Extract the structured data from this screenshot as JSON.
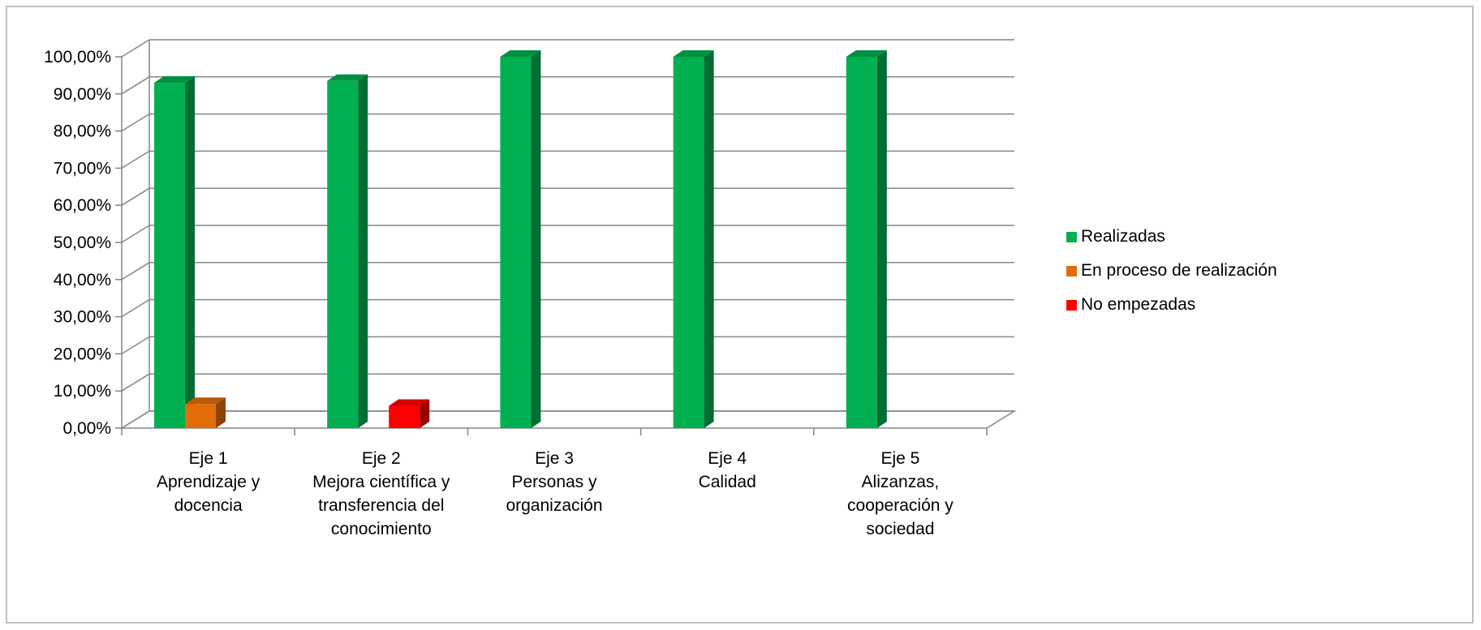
{
  "chart_data": {
    "type": "bar",
    "title": "",
    "xlabel": "",
    "ylabel": "",
    "ylim": [
      0,
      1
    ],
    "y_ticks": [
      "0,00%",
      "10,00%",
      "20,00%",
      "30,00%",
      "40,00%",
      "50,00%",
      "60,00%",
      "70,00%",
      "80,00%",
      "90,00%",
      "100,00%"
    ],
    "grid": true,
    "style": "3d-clustered-column",
    "legend_position": "right",
    "categories": [
      [
        "Eje 1",
        "Aprendizaje y",
        "docencia"
      ],
      [
        "Eje 2",
        "Mejora científica y",
        "transferencia del",
        "conocimiento"
      ],
      [
        "Eje 3",
        "Personas y",
        "organización"
      ],
      [
        "Eje 4",
        "Calidad"
      ],
      [
        "Eje 5",
        "Alizanzas,",
        "cooperación y",
        "sociedad"
      ]
    ],
    "series": [
      {
        "name": "Realizadas",
        "color": "#00b050",
        "values": [
          0.93,
          0.935,
          1.0,
          1.0,
          1.0
        ]
      },
      {
        "name": "En proceso de realización",
        "color": "#e36c09",
        "values": [
          0.065,
          0,
          0,
          0,
          0
        ]
      },
      {
        "name": "No empezadas",
        "color": "#ff0000",
        "values": [
          0,
          0.06,
          0,
          0,
          0
        ]
      }
    ]
  }
}
